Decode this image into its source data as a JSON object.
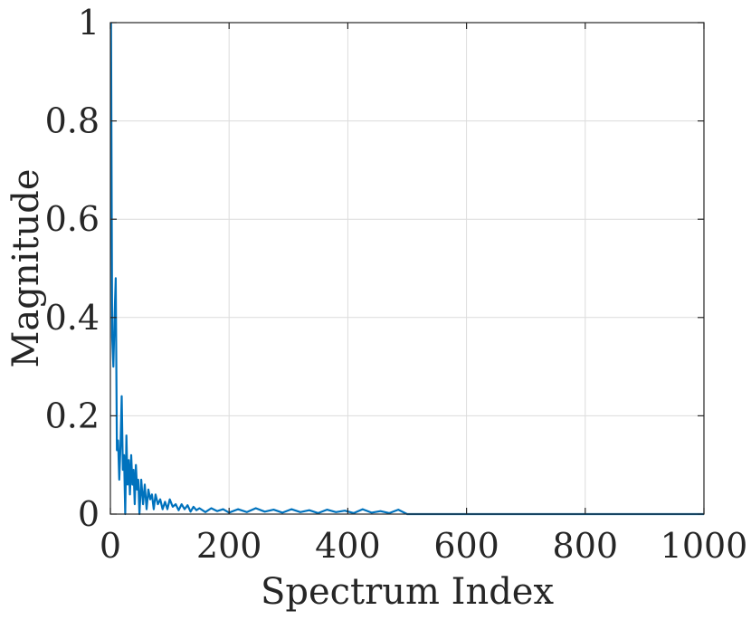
{
  "chart_data": {
    "type": "line",
    "title": "",
    "xlabel": "Spectrum Index",
    "ylabel": "Magnitude",
    "xlim": [
      0,
      1000
    ],
    "ylim": [
      0,
      1
    ],
    "grid": true,
    "x_ticks": [
      0,
      200,
      400,
      600,
      800,
      1000
    ],
    "x_tick_labels": [
      "0",
      "200",
      "400",
      "600",
      "800",
      "1000"
    ],
    "y_ticks": [
      0,
      0.2,
      0.4,
      0.6,
      0.8,
      1
    ],
    "y_tick_labels": [
      "0",
      "0.2",
      "0.4",
      "0.6",
      "0.8",
      "1"
    ],
    "colors": {
      "series": "#0072bd",
      "axis": "#262626",
      "grid": "#dcdcdc"
    },
    "series": [
      {
        "color": "#0072bd",
        "x": [
          1,
          3,
          5,
          7,
          9,
          11,
          13,
          15,
          17,
          19,
          21,
          23,
          25,
          27,
          29,
          31,
          33,
          35,
          37,
          39,
          41,
          43,
          45,
          47,
          49,
          52,
          55,
          58,
          61,
          64,
          67,
          70,
          73,
          76,
          80,
          84,
          88,
          92,
          96,
          100,
          105,
          110,
          115,
          120,
          125,
          130,
          135,
          140,
          145,
          150,
          160,
          170,
          180,
          190,
          200,
          215,
          230,
          245,
          260,
          275,
          290,
          305,
          320,
          335,
          350,
          365,
          380,
          395,
          410,
          425,
          440,
          455,
          470,
          485,
          495,
          500,
          510,
          600,
          700,
          800,
          900,
          1000
        ],
        "y": [
          1.0,
          0.36,
          0.3,
          0.4,
          0.48,
          0.13,
          0.15,
          0.07,
          0.14,
          0.24,
          0.09,
          0.12,
          0.0,
          0.16,
          0.06,
          0.11,
          0.04,
          0.12,
          0.06,
          0.09,
          0.02,
          0.1,
          0.05,
          0.07,
          0.0,
          0.07,
          0.02,
          0.06,
          0.01,
          0.05,
          0.03,
          0.04,
          0.01,
          0.04,
          0.02,
          0.03,
          0.01,
          0.025,
          0.01,
          0.03,
          0.015,
          0.02,
          0.008,
          0.02,
          0.01,
          0.018,
          0.005,
          0.015,
          0.008,
          0.012,
          0.004,
          0.012,
          0.006,
          0.01,
          0.003,
          0.01,
          0.004,
          0.012,
          0.005,
          0.009,
          0.003,
          0.01,
          0.004,
          0.008,
          0.002,
          0.009,
          0.004,
          0.007,
          0.002,
          0.01,
          0.003,
          0.006,
          0.002,
          0.009,
          0.003,
          0.0,
          0.0,
          0.0,
          0.0,
          0.0,
          0.0,
          0.0
        ]
      }
    ]
  }
}
